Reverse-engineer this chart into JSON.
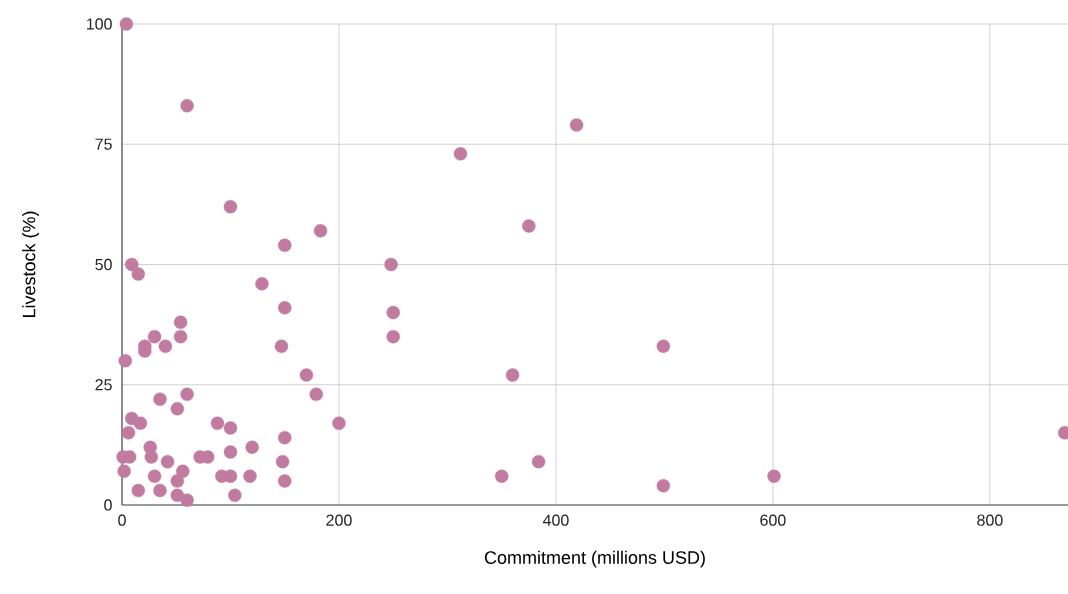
{
  "chart_data": {
    "type": "scatter",
    "xlabel": "Commitment (millions USD)",
    "ylabel": "Livestock (%)",
    "color": "#c27ba0",
    "marker": "circle",
    "grid": true,
    "xlim": [
      0,
      872
    ],
    "ylim": [
      0,
      100
    ],
    "xticks": [
      0,
      200,
      400,
      600,
      800
    ],
    "yticks": [
      0,
      25,
      50,
      75,
      100
    ],
    "x": [
      4,
      60,
      419,
      312,
      100,
      375,
      183,
      150,
      9,
      248,
      15,
      129,
      150,
      250,
      54,
      30,
      54,
      250,
      40,
      21,
      21,
      147,
      499,
      3,
      170,
      360,
      60,
      179,
      35,
      51,
      9,
      17,
      88,
      200,
      100,
      6,
      869,
      150,
      26,
      120,
      27,
      1,
      7,
      72,
      79,
      100,
      42,
      148,
      384,
      2,
      56,
      30,
      92,
      100,
      118,
      350,
      601,
      150,
      51,
      499,
      15,
      35,
      51,
      104,
      60
    ],
    "values": [
      100,
      83,
      79,
      73,
      62,
      58,
      57,
      54,
      50,
      50,
      48,
      46,
      41,
      40,
      38,
      35,
      35,
      35,
      33,
      33,
      32,
      33,
      33,
      30,
      27,
      27,
      23,
      23,
      22,
      20,
      18,
      17,
      17,
      17,
      16,
      15,
      15,
      14,
      12,
      12,
      10,
      10,
      10,
      10,
      10,
      11,
      9,
      9,
      9,
      7,
      7,
      6,
      6,
      6,
      6,
      6,
      6,
      5,
      5,
      4,
      3,
      3,
      2,
      2,
      1
    ]
  }
}
